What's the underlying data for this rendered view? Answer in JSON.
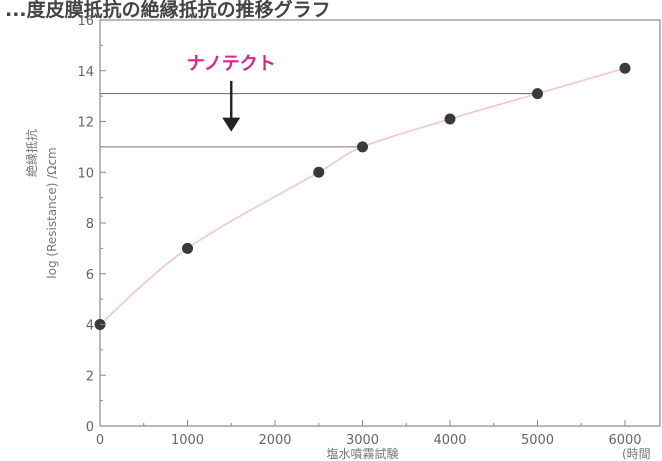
{
  "header_text": "...度皮膜抵抗の絶縁抵抗の推移グラフ",
  "chart_data": {
    "type": "scatter",
    "series": [
      {
        "x": [
          0,
          1000,
          2500,
          3000,
          4000,
          5000,
          6000
        ],
        "y": [
          4,
          7,
          10,
          11,
          12.1,
          13.1,
          14.1
        ]
      }
    ],
    "xlim": [
      0,
      6400
    ],
    "ylim": [
      0,
      16
    ],
    "xticks": [
      0,
      1000,
      2000,
      3000,
      4000,
      5000,
      6000
    ],
    "yticks": [
      0,
      2,
      4,
      6,
      8,
      10,
      12,
      14,
      16
    ],
    "xlabel": "塩水噴霧試験",
    "xunit": "(時間",
    "ylabel_line1": "絶縁抵抗",
    "ylabel_line2": "log (Resistance) /Ωcm",
    "grid": false,
    "annotation": {
      "text": "ナノテクト",
      "color": "#e0208a",
      "arrow_x": 1500,
      "arrow_from_y": 13.6,
      "arrow_to_y": 11.6
    },
    "reference_lines": [
      {
        "y": 13.1,
        "x_to": 5000
      },
      {
        "y": 11.0,
        "x_to": 3000
      }
    ],
    "colors": {
      "marker": "#3a3a3a",
      "trend": "#f2c8c8",
      "axis": "#888888",
      "reference": "#777777"
    }
  }
}
